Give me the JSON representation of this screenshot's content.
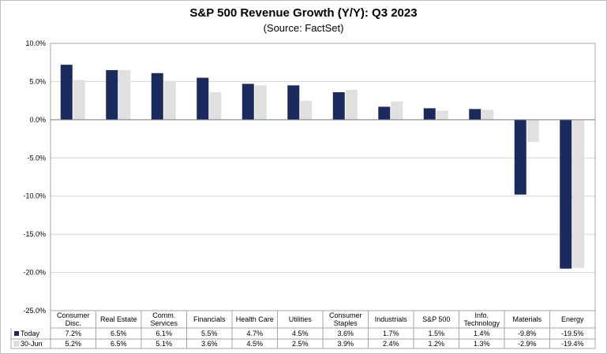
{
  "chart_data": {
    "type": "bar",
    "title": "S&P 500 Revenue Growth (Y/Y):  Q3 2023",
    "subtitle": "(Source: FactSet)",
    "categories": [
      [
        "Consumer",
        "Disc."
      ],
      [
        "Real Estate"
      ],
      [
        "Comm.",
        "Services"
      ],
      [
        "Financials"
      ],
      [
        "Health Care"
      ],
      [
        "Utilities"
      ],
      [
        "Consumer",
        "Staples"
      ],
      [
        "Industrials"
      ],
      [
        "S&P 500"
      ],
      [
        "Info.",
        "Technology"
      ],
      [
        "Materials"
      ],
      [
        "Energy"
      ]
    ],
    "series": [
      {
        "name": "Today",
        "color": "#1b2a5c",
        "values": [
          7.2,
          6.5,
          6.1,
          5.5,
          4.7,
          4.5,
          3.6,
          1.7,
          1.5,
          1.4,
          -9.8,
          -19.5
        ],
        "labels": [
          "7.2%",
          "6.5%",
          "6.1%",
          "5.5%",
          "4.7%",
          "4.5%",
          "3.6%",
          "1.7%",
          "1.5%",
          "1.4%",
          "-9.8%",
          "-19.5%"
        ]
      },
      {
        "name": "30-Jun",
        "color": "#e0e0e0",
        "values": [
          5.2,
          6.5,
          5.1,
          3.6,
          4.5,
          2.5,
          3.9,
          2.4,
          1.2,
          1.3,
          -2.9,
          -19.4
        ],
        "labels": [
          "5.2%",
          "6.5%",
          "5.1%",
          "3.6%",
          "4.5%",
          "2.5%",
          "3.9%",
          "2.4%",
          "1.2%",
          "1.3%",
          "-2.9%",
          "-19.4%"
        ]
      }
    ],
    "ylim": [
      -25,
      10
    ],
    "yticks": [
      10,
      5,
      0,
      -5,
      -10,
      -15,
      -20,
      -25
    ],
    "ytick_labels": [
      "10.0%",
      "5.0%",
      "0.0%",
      "-5.0%",
      "-10.0%",
      "-15.0%",
      "-20.0%",
      "-25.0%"
    ],
    "grid": true,
    "legend": "data-table"
  }
}
